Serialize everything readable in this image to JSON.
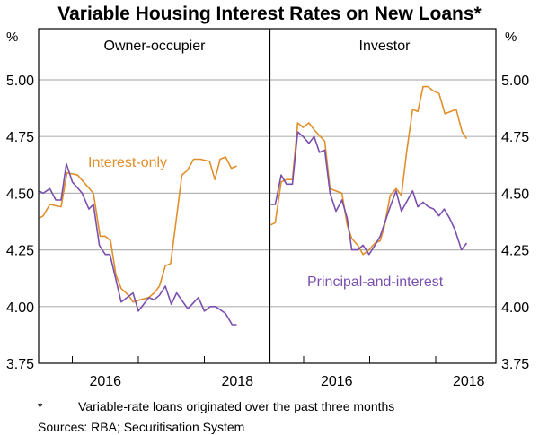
{
  "chart_data": {
    "type": "line",
    "title": "Variable Housing Interest Rates on New Loans*",
    "ylabel_left": "%",
    "ylabel_right": "%",
    "ylim": [
      3.75,
      5.0
    ],
    "yticks": [
      "3.75",
      "4.00",
      "4.25",
      "4.50",
      "4.75",
      "5.00"
    ],
    "ytick_values": [
      3.75,
      4.0,
      4.25,
      4.5,
      4.75,
      5.0
    ],
    "xlim": [
      2015.49,
      2018.99
    ],
    "xtick_boundaries": [
      2016,
      2017,
      2018
    ],
    "xtick_labels": [
      {
        "label": "2016",
        "at": 2016.5
      },
      {
        "label": "2018",
        "at": 2018.5
      }
    ],
    "colors": {
      "interest_only": "#E08F2A",
      "principal_and_interest": "#7A4FAE"
    },
    "panels": [
      {
        "title": "Owner-occupier",
        "annotation": "Interest-only",
        "series": [
          {
            "name": "Interest-only",
            "color": "#E08F2A",
            "x": [
              2015.5,
              2015.56,
              2015.66,
              2015.83,
              2015.92,
              2016.08,
              2016.17,
              2016.32,
              2016.42,
              2016.5,
              2016.58,
              2016.66,
              2016.74,
              2016.85,
              2016.92,
              2017.03,
              2017.16,
              2017.24,
              2017.32,
              2017.41,
              2017.49,
              2017.66,
              2017.74,
              2017.84,
              2017.94,
              2018.08,
              2018.16,
              2018.24,
              2018.32,
              2018.41,
              2018.49
            ],
            "y": [
              4.39,
              4.4,
              4.45,
              4.44,
              4.59,
              4.58,
              4.55,
              4.5,
              4.31,
              4.31,
              4.29,
              4.14,
              4.08,
              4.05,
              4.02,
              4.03,
              4.04,
              4.06,
              4.09,
              4.18,
              4.19,
              4.58,
              4.6,
              4.65,
              4.65,
              4.64,
              4.56,
              4.65,
              4.66,
              4.61,
              4.62
            ]
          },
          {
            "name": "Principal-and-interest",
            "color": "#7A4FAE",
            "x": [
              2015.5,
              2015.56,
              2015.66,
              2015.75,
              2015.83,
              2015.91,
              2016.0,
              2016.15,
              2016.25,
              2016.32,
              2016.41,
              2016.5,
              2016.57,
              2016.74,
              2016.92,
              2017.0,
              2017.16,
              2017.24,
              2017.32,
              2017.41,
              2017.5,
              2017.58,
              2017.75,
              2017.91,
              2018.0,
              2018.09,
              2018.17,
              2018.32,
              2018.42,
              2018.49
            ],
            "y": [
              4.51,
              4.5,
              4.52,
              4.47,
              4.47,
              4.63,
              4.55,
              4.5,
              4.43,
              4.45,
              4.27,
              4.23,
              4.23,
              4.02,
              4.06,
              3.98,
              4.04,
              4.03,
              4.05,
              4.09,
              4.01,
              4.06,
              3.99,
              4.04,
              3.98,
              4.0,
              4.0,
              3.97,
              3.92,
              3.92
            ]
          }
        ]
      },
      {
        "title": "Investor",
        "annotation": "Principal-and-interest",
        "series": [
          {
            "name": "Interest-only",
            "color": "#E08F2A",
            "x": [
              2015.5,
              2015.57,
              2015.66,
              2015.74,
              2015.83,
              2015.91,
              2015.99,
              2016.08,
              2016.16,
              2016.25,
              2016.32,
              2016.4,
              2016.49,
              2016.58,
              2016.66,
              2016.73,
              2016.82,
              2016.9,
              2016.99,
              2017.08,
              2017.16,
              2017.22,
              2017.31,
              2017.4,
              2017.48,
              2017.56,
              2017.65,
              2017.73,
              2017.81,
              2017.88,
              2017.97,
              2018.05,
              2018.14,
              2018.31,
              2018.4,
              2018.47
            ],
            "y": [
              4.36,
              4.37,
              4.55,
              4.56,
              4.56,
              4.81,
              4.79,
              4.81,
              4.78,
              4.75,
              4.73,
              4.52,
              4.51,
              4.5,
              4.36,
              4.3,
              4.27,
              4.23,
              4.25,
              4.28,
              4.29,
              4.35,
              4.49,
              4.52,
              4.49,
              4.68,
              4.87,
              4.86,
              4.97,
              4.97,
              4.95,
              4.94,
              4.85,
              4.87,
              4.77,
              4.74
            ]
          },
          {
            "name": "Principal-and-interest",
            "color": "#7A4FAE",
            "x": [
              2015.5,
              2015.57,
              2015.66,
              2015.74,
              2015.83,
              2015.91,
              2015.99,
              2016.08,
              2016.16,
              2016.24,
              2016.32,
              2016.4,
              2016.49,
              2016.58,
              2016.66,
              2016.73,
              2016.82,
              2016.9,
              2016.99,
              2017.08,
              2017.16,
              2017.31,
              2017.4,
              2017.48,
              2017.65,
              2017.73,
              2017.81,
              2017.89,
              2017.97,
              2018.05,
              2018.13,
              2018.21,
              2018.29,
              2018.39,
              2018.47
            ],
            "y": [
              4.45,
              4.45,
              4.58,
              4.54,
              4.54,
              4.77,
              4.75,
              4.72,
              4.75,
              4.68,
              4.69,
              4.5,
              4.42,
              4.47,
              4.39,
              4.25,
              4.25,
              4.27,
              4.23,
              4.27,
              4.31,
              4.44,
              4.51,
              4.42,
              4.51,
              4.44,
              4.46,
              4.44,
              4.43,
              4.4,
              4.43,
              4.39,
              4.34,
              4.25,
              4.28
            ]
          }
        ]
      }
    ],
    "footnote_marker": "*",
    "footnote": "Variable-rate loans originated over the past three months",
    "sources": "Sources: RBA; Securitisation System"
  }
}
